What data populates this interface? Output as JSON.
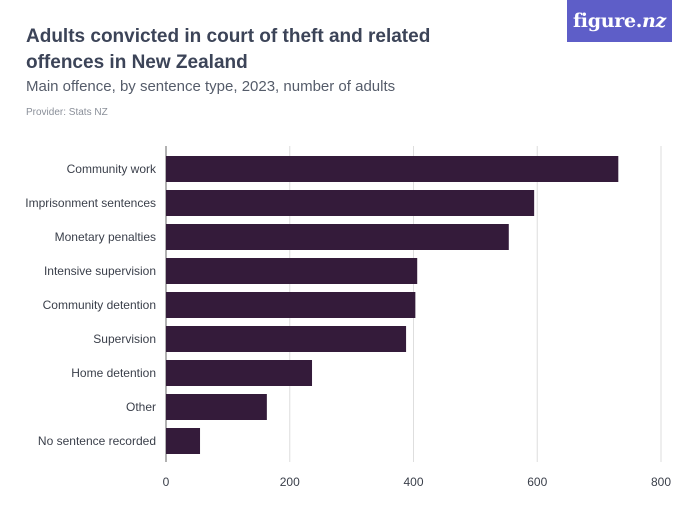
{
  "header": {
    "title": "Adults convicted in court of theft and related offences in New Zealand",
    "subtitle": "Main offence, by sentence type, 2023, number of adults",
    "provider": "Provider: Stats NZ"
  },
  "brand": {
    "name_main": "figure.",
    "name_suffix": "nz",
    "background": "#5e5ec8"
  },
  "chart_data": {
    "type": "bar",
    "orientation": "horizontal",
    "title": "Adults convicted in court of theft and related offences in New Zealand",
    "subtitle": "Main offence, by sentence type, 2023, number of adults",
    "xlabel": "",
    "ylabel": "",
    "categories": [
      "Community work",
      "Imprisonment sentences",
      "Monetary penalties",
      "Intensive supervision",
      "Community detention",
      "Supervision",
      "Home detention",
      "Other",
      "No sentence recorded"
    ],
    "values": [
      731,
      595,
      554,
      406,
      403,
      388,
      236,
      163,
      55
    ],
    "xlim": [
      0,
      800
    ],
    "xticks": [
      0,
      200,
      400,
      600,
      800
    ],
    "grid": true,
    "legend": "none",
    "bar_color": "#341b3a"
  }
}
